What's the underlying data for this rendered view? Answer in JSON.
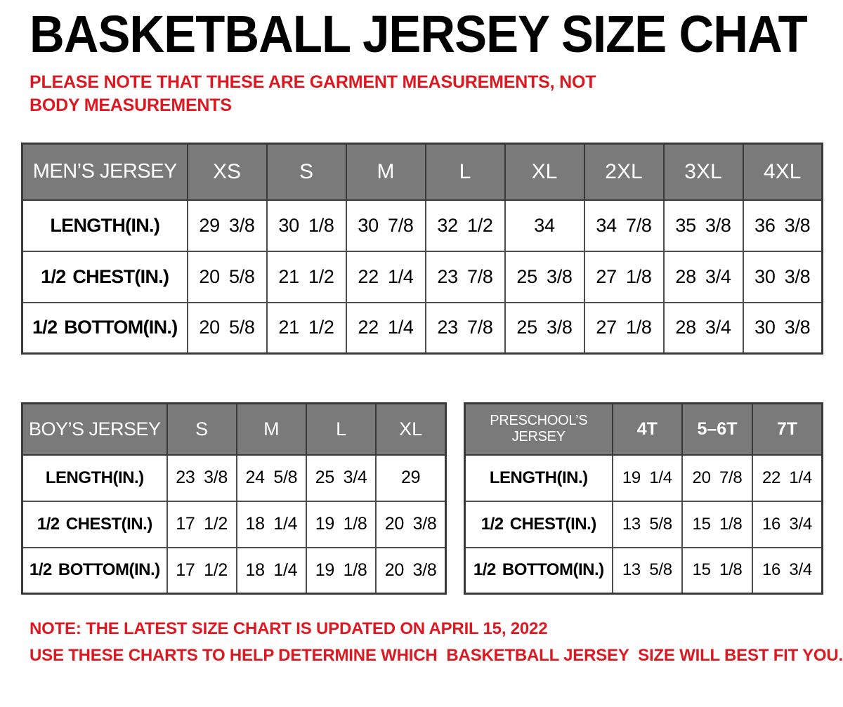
{
  "title": "BASKETBALL JERSEY SIZE CHAT",
  "top_note": "PLEASE NOTE THAT THESE ARE GARMENT MEASUREMENTS, NOT BODY MEASUREMENTS",
  "bottom_notes": [
    "NOTE: THE LATEST SIZE CHART IS UPDATED ON APRIL 15, 2022",
    "USE THESE CHARTS TO HELP DETERMINE WHICH  BASKETBALL JERSEY  SIZE WILL BEST FIT YOU."
  ],
  "colors": {
    "accent_red": "#dd1820",
    "header_gray": "#7a7a7a",
    "header_text": "#ffffff",
    "table_border": "#4e4e4e",
    "text_black": "#000000"
  },
  "tables": {
    "mens": {
      "name_header": "MEN’S JERSEY",
      "size_headers": [
        "XS",
        "S",
        "M",
        "L",
        "XL",
        "2XL",
        "3XL",
        "4XL"
      ],
      "rows": [
        {
          "label": "LENGTH(IN.)",
          "values": [
            "29 3/8",
            "30 1/8",
            "30 7/8",
            "32 1/2",
            "34",
            "34 7/8",
            "35 3/8",
            "36 3/8"
          ]
        },
        {
          "label": "1/2 CHEST(IN.)",
          "values": [
            "20 5/8",
            "21 1/2",
            "22 1/4",
            "23 7/8",
            "25 3/8",
            "27 1/8",
            "28 3/4",
            "30 3/8"
          ]
        },
        {
          "label": "1/2 BOTTOM(IN.)",
          "values": [
            "20 5/8",
            "21 1/2",
            "22 1/4",
            "23 7/8",
            "25 3/8",
            "27 1/8",
            "28 3/4",
            "30 3/8"
          ]
        }
      ]
    },
    "boys": {
      "name_header": "BOY’S JERSEY",
      "size_headers": [
        "S",
        "M",
        "L",
        "XL"
      ],
      "rows": [
        {
          "label": "LENGTH(IN.)",
          "values": [
            "23 3/8",
            "24 5/8",
            "25 3/4",
            "29"
          ]
        },
        {
          "label": "1/2 CHEST(IN.)",
          "values": [
            "17 1/2",
            "18 1/4",
            "19 1/8",
            "20 3/8"
          ]
        },
        {
          "label": "1/2 BOTTOM(IN.)",
          "values": [
            "17 1/2",
            "18 1/4",
            "19 1/8",
            "20 3/8"
          ]
        }
      ]
    },
    "preschool": {
      "name_header": "PRESCHOOL’S JERSEY",
      "size_headers": [
        "4T",
        "5–6T",
        "7T"
      ],
      "rows": [
        {
          "label": "LENGTH(IN.)",
          "values": [
            "19 1/4",
            "20 7/8",
            "22 1/4"
          ]
        },
        {
          "label": "1/2 CHEST(IN.)",
          "values": [
            "13 5/8",
            "15 1/8",
            "16 3/4"
          ]
        },
        {
          "label": "1/2 BOTTOM(IN.)",
          "values": [
            "13 5/8",
            "15 1/8",
            "16 3/4"
          ]
        }
      ]
    }
  }
}
